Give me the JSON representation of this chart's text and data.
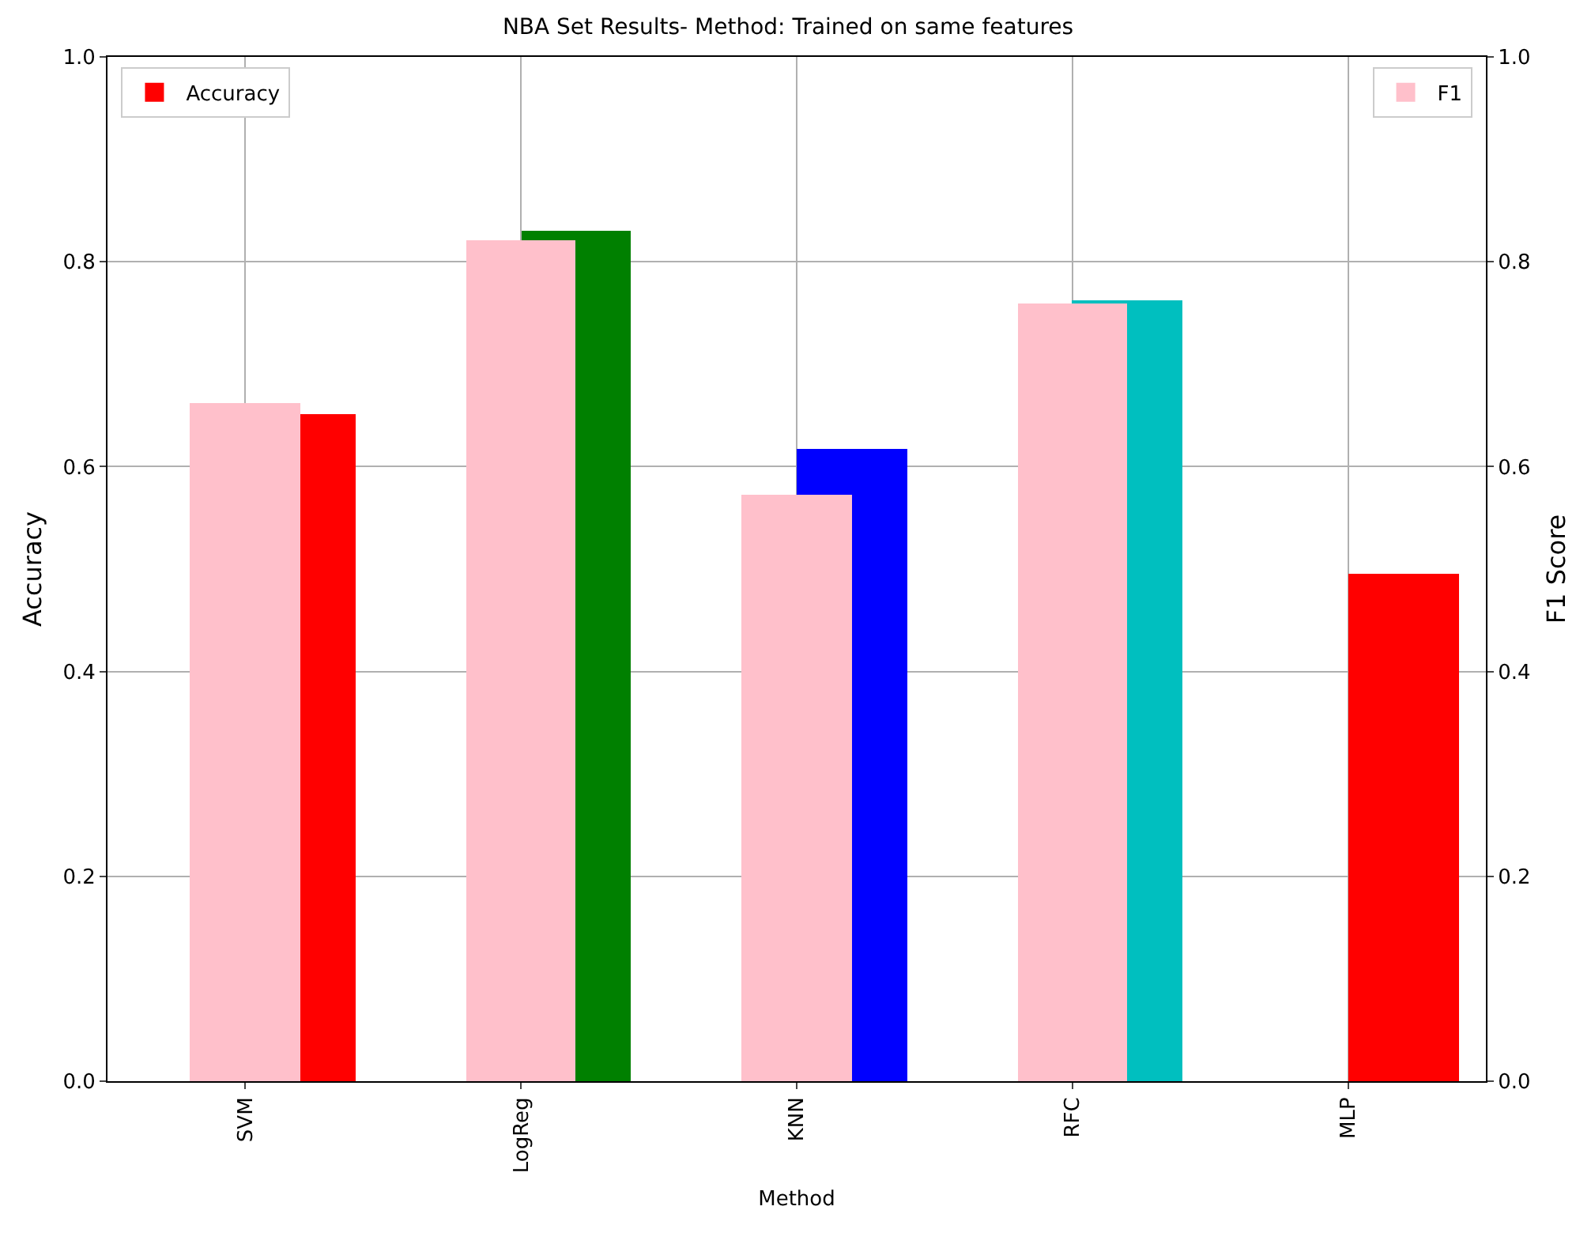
{
  "chart_data": {
    "type": "bar",
    "title": "NBA Set Results- Method: Trained on same features",
    "xlabel": "Method",
    "ylabel": "Accuracy",
    "y2label": "F1 Score",
    "categories": [
      "SVM",
      "LogReg",
      "KNN",
      "RFC",
      "MLP"
    ],
    "series": [
      {
        "name": "Accuracy",
        "colors": [
          "#ff0000",
          "#008000",
          "#0000ff",
          "#00bfbf",
          "#ff0000"
        ],
        "values": [
          0.651,
          0.83,
          0.617,
          0.762,
          0.496
        ]
      },
      {
        "name": "F1",
        "color": "#ffc0cb",
        "axis": "y2",
        "values": [
          0.662,
          0.821,
          0.573,
          0.759,
          null
        ]
      }
    ],
    "ylim": [
      0,
      1
    ],
    "yticks": [
      {
        "value": 0,
        "label": "0.0"
      },
      0.2,
      0.4,
      0.6,
      0.8,
      {
        "value": 1,
        "label": "1.0"
      }
    ],
    "y2lim": [
      0,
      1
    ],
    "y2ticks": [
      {
        "value": 0,
        "label": "0.0"
      },
      0.2,
      0.4,
      0.6,
      0.8,
      {
        "value": 1,
        "label": "1.0"
      }
    ],
    "grid": true,
    "legend": "top"
  }
}
